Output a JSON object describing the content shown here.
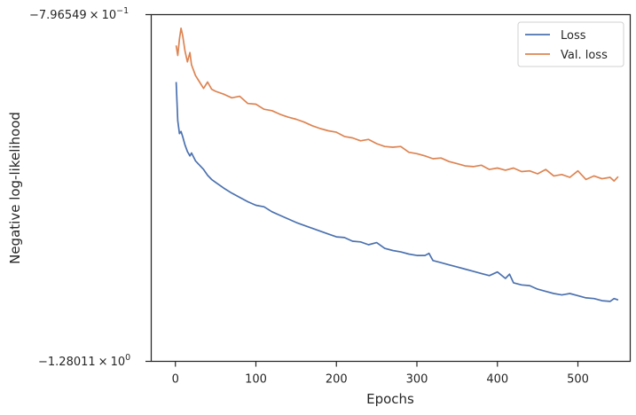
{
  "chart_data": {
    "type": "line",
    "title": "",
    "xlabel": "Epochs",
    "ylabel": "Negative log-likelihood",
    "xlim": [
      -30,
      565
    ],
    "ylim": [
      -1.28011,
      -0.796549
    ],
    "yscale": "symlog",
    "grid": false,
    "legend_placement": "top-right",
    "x_ticks": [
      0,
      100,
      200,
      300,
      400,
      500
    ],
    "x_tick_labels": [
      "0",
      "100",
      "200",
      "300",
      "400",
      "500"
    ],
    "y_tick_labels": {
      "top": {
        "base": "−7.96549",
        "times": "×",
        "power": "10",
        "exp": "−1"
      },
      "bottom": {
        "base": "−1.28011",
        "times": "×",
        "power": "10",
        "exp": "0"
      }
    },
    "series": [
      {
        "name": "Loss",
        "color": "#4c72b0",
        "x": [
          1,
          3,
          5,
          7,
          9,
          12,
          15,
          18,
          20,
          25,
          30,
          35,
          40,
          45,
          50,
          60,
          70,
          80,
          90,
          100,
          110,
          120,
          130,
          140,
          150,
          160,
          170,
          180,
          190,
          200,
          210,
          220,
          230,
          240,
          250,
          260,
          270,
          280,
          290,
          300,
          310,
          315,
          320,
          330,
          340,
          350,
          360,
          370,
          380,
          390,
          400,
          410,
          415,
          420,
          430,
          440,
          450,
          460,
          470,
          480,
          490,
          500,
          510,
          520,
          530,
          540,
          545,
          550
        ],
        "y": [
          -0.8905,
          -0.9445,
          -0.9625,
          -0.9595,
          -0.9665,
          -0.9785,
          -0.9875,
          -0.9935,
          -0.9895,
          -1.0005,
          -1.0065,
          -1.0125,
          -1.0205,
          -1.0265,
          -1.0305,
          -1.0385,
          -1.0455,
          -1.0515,
          -1.0575,
          -1.0625,
          -1.0645,
          -1.0715,
          -1.0765,
          -1.0815,
          -1.0865,
          -1.0905,
          -1.0945,
          -1.0985,
          -1.1025,
          -1.1065,
          -1.1075,
          -1.1125,
          -1.1135,
          -1.1175,
          -1.1145,
          -1.1225,
          -1.1255,
          -1.1275,
          -1.1305,
          -1.1325,
          -1.1325,
          -1.1295,
          -1.1395,
          -1.1425,
          -1.1455,
          -1.1485,
          -1.1515,
          -1.1545,
          -1.1575,
          -1.1605,
          -1.1555,
          -1.1645,
          -1.1585,
          -1.1705,
          -1.1735,
          -1.1745,
          -1.1795,
          -1.1825,
          -1.1855,
          -1.1875,
          -1.1855,
          -1.1885,
          -1.1915,
          -1.1925,
          -1.1955,
          -1.1965,
          -1.1925,
          -1.1945
        ]
      },
      {
        "name": "Val. loss",
        "color": "#dd8452",
        "x": [
          1,
          3,
          5,
          7,
          9,
          12,
          15,
          18,
          20,
          25,
          30,
          35,
          40,
          45,
          50,
          60,
          70,
          80,
          90,
          100,
          110,
          120,
          130,
          140,
          150,
          160,
          170,
          180,
          190,
          200,
          210,
          220,
          230,
          240,
          250,
          260,
          270,
          280,
          290,
          300,
          310,
          320,
          330,
          340,
          350,
          360,
          370,
          380,
          390,
          400,
          410,
          420,
          430,
          440,
          450,
          460,
          470,
          480,
          490,
          500,
          510,
          520,
          530,
          540,
          545,
          550
        ],
        "y": [
          -0.8395,
          -0.8535,
          -0.8305,
          -0.8155,
          -0.8255,
          -0.8475,
          -0.8625,
          -0.8495,
          -0.8665,
          -0.8815,
          -0.8905,
          -0.8995,
          -0.8905,
          -0.9005,
          -0.9035,
          -0.9075,
          -0.9125,
          -0.9105,
          -0.9205,
          -0.9215,
          -0.9285,
          -0.9305,
          -0.9355,
          -0.9395,
          -0.9425,
          -0.9465,
          -0.9515,
          -0.9555,
          -0.9585,
          -0.9605,
          -0.9665,
          -0.9685,
          -0.9725,
          -0.9705,
          -0.9765,
          -0.9805,
          -0.9815,
          -0.9805,
          -0.9885,
          -0.9905,
          -0.9935,
          -0.9975,
          -0.9965,
          -1.0015,
          -1.0045,
          -1.0075,
          -1.0085,
          -1.0065,
          -1.0125,
          -1.0105,
          -1.0135,
          -1.0105,
          -1.0155,
          -1.0145,
          -1.0185,
          -1.0125,
          -1.0215,
          -1.0195,
          -1.0235,
          -1.0145,
          -1.0265,
          -1.0215,
          -1.0255,
          -1.0235,
          -1.0285,
          -1.0225
        ]
      }
    ]
  }
}
